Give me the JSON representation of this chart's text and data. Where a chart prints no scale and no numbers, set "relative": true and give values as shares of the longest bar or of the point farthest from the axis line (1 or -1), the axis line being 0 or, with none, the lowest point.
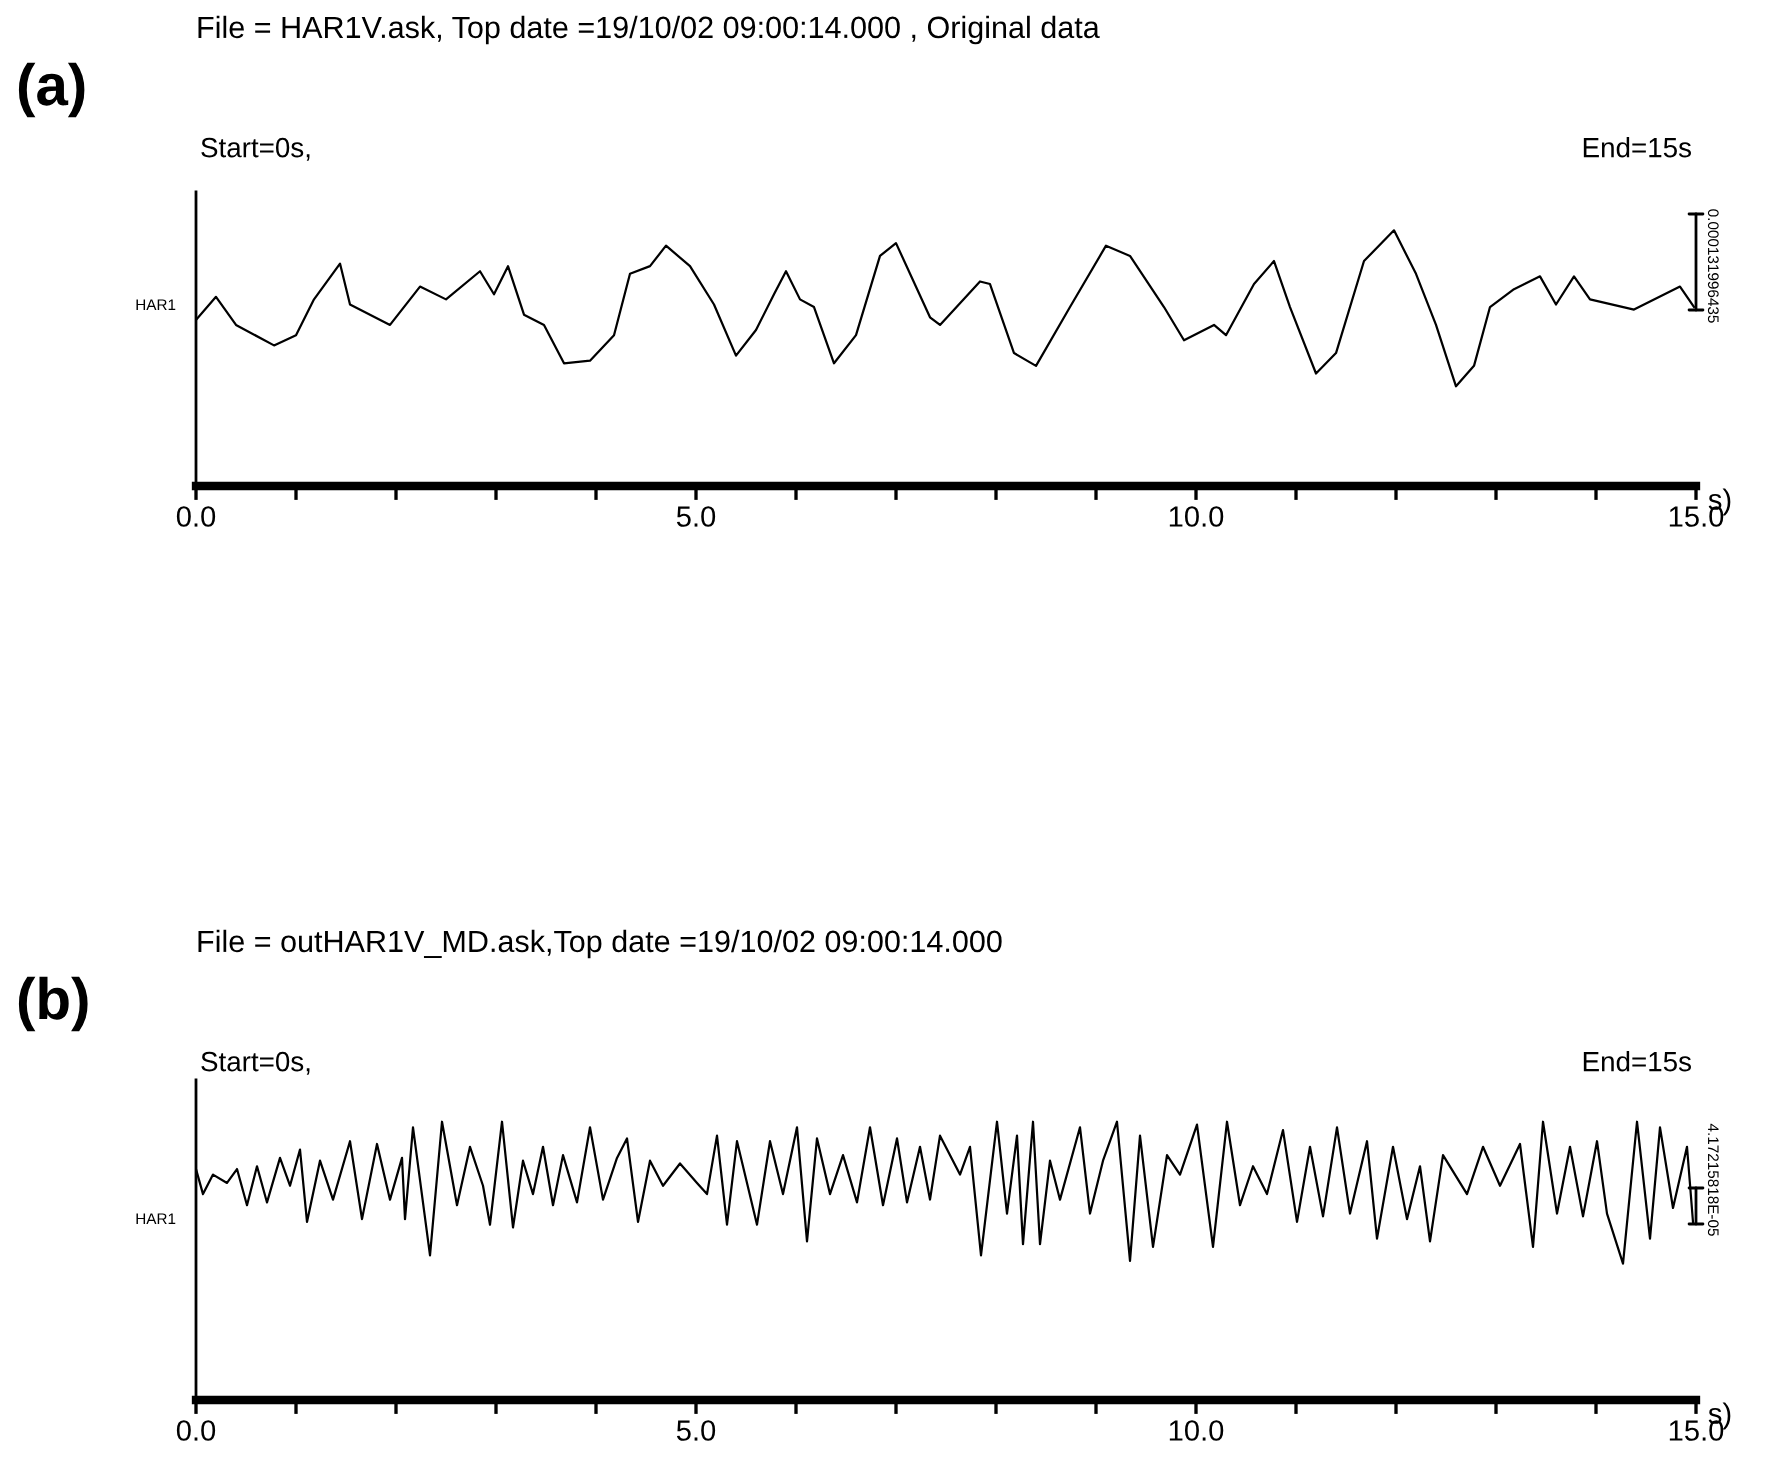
{
  "chart_data": [
    {
      "type": "line",
      "title": "File = HAR1V.ask, Top date =19/10/02 09:00:14.000 , Original data",
      "xlabel": "s)",
      "annotations": [
        "(a)",
        "Start=0s,",
        "End=15s",
        "HAR1",
        "0.000131996435"
      ],
      "relative": true,
      "xlim": [
        0,
        15
      ],
      "xticks": [
        {
          "value": 0,
          "label": "0.0"
        },
        {
          "value": 1,
          "label": null
        },
        {
          "value": 2,
          "label": null
        },
        {
          "value": 3,
          "label": null
        },
        {
          "value": 4,
          "label": null
        },
        {
          "value": 5,
          "label": "5.0"
        },
        {
          "value": 6,
          "label": null
        },
        {
          "value": 7,
          "label": null
        },
        {
          "value": 8,
          "label": null
        },
        {
          "value": 9,
          "label": null
        },
        {
          "value": 10,
          "label": "10.0"
        },
        {
          "value": 11,
          "label": null
        },
        {
          "value": 12,
          "label": null
        },
        {
          "value": 13,
          "label": null
        },
        {
          "value": 14,
          "label": null
        },
        {
          "value": 15,
          "label": "15.0"
        }
      ],
      "x": [
        0.0,
        0.2,
        0.4,
        0.78,
        1.0,
        1.18,
        1.44,
        1.54,
        1.94,
        2.24,
        2.5,
        2.84,
        2.98,
        3.12,
        3.28,
        3.48,
        3.68,
        3.94,
        4.18,
        4.34,
        4.54,
        4.7,
        4.94,
        5.18,
        5.4,
        5.6,
        5.78,
        5.9,
        6.04,
        6.18,
        6.38,
        6.6,
        6.84,
        7.0,
        7.34,
        7.44,
        7.84,
        7.94,
        8.18,
        8.4,
        8.74,
        9.1,
        9.34,
        9.68,
        9.88,
        10.18,
        10.3,
        10.58,
        10.78,
        10.94,
        11.2,
        11.4,
        11.68,
        11.98,
        12.2,
        12.4,
        12.6,
        12.78,
        12.94,
        13.18,
        13.44,
        13.6,
        13.78,
        13.94,
        14.38,
        14.84,
        14.98
      ],
      "series": [
        {
          "color": "#000000",
          "values": [
            0.65,
            0.74,
            0.63,
            0.55,
            0.59,
            0.73,
            0.87,
            0.71,
            0.63,
            0.78,
            0.73,
            0.84,
            0.75,
            0.86,
            0.67,
            0.63,
            0.48,
            0.49,
            0.59,
            0.83,
            0.86,
            0.94,
            0.86,
            0.71,
            0.51,
            0.61,
            0.75,
            0.84,
            0.73,
            0.7,
            0.48,
            0.59,
            0.9,
            0.95,
            0.66,
            0.63,
            0.8,
            0.79,
            0.52,
            0.47,
            0.7,
            0.94,
            0.9,
            0.7,
            0.57,
            0.63,
            0.59,
            0.79,
            0.88,
            0.7,
            0.44,
            0.52,
            0.88,
            1.0,
            0.83,
            0.63,
            0.39,
            0.47,
            0.7,
            0.77,
            0.82,
            0.71,
            0.82,
            0.73,
            0.69,
            0.78,
            0.7
          ]
        }
      ]
    },
    {
      "type": "line",
      "title": "File = outHAR1V_MD.ask,Top date =19/10/02 09:00:14.000",
      "xlabel": "s)",
      "annotations": [
        "(b)",
        "Start=0s,",
        "End=15s",
        "HAR1",
        "4.17215818E-05"
      ],
      "relative": true,
      "xlim": [
        0,
        15
      ],
      "xticks": [
        {
          "value": 0,
          "label": "0.0"
        },
        {
          "value": 1,
          "label": null
        },
        {
          "value": 2,
          "label": null
        },
        {
          "value": 3,
          "label": null
        },
        {
          "value": 4,
          "label": null
        },
        {
          "value": 5,
          "label": "5.0"
        },
        {
          "value": 6,
          "label": null
        },
        {
          "value": 7,
          "label": null
        },
        {
          "value": 8,
          "label": null
        },
        {
          "value": 9,
          "label": null
        },
        {
          "value": 10,
          "label": "10.0"
        },
        {
          "value": 11,
          "label": null
        },
        {
          "value": 12,
          "label": null
        },
        {
          "value": 13,
          "label": null
        },
        {
          "value": 14,
          "label": null
        },
        {
          "value": 15,
          "label": "15.0"
        }
      ],
      "x": [
        0.0,
        0.07,
        0.17,
        0.31,
        0.41,
        0.51,
        0.61,
        0.71,
        0.84,
        0.94,
        1.04,
        1.11,
        1.24,
        1.37,
        1.54,
        1.66,
        1.81,
        1.94,
        2.06,
        2.09,
        2.17,
        2.34,
        2.46,
        2.61,
        2.74,
        2.87,
        2.94,
        3.06,
        3.17,
        3.27,
        3.37,
        3.47,
        3.57,
        3.67,
        3.81,
        3.94,
        4.07,
        4.21,
        4.31,
        4.42,
        4.54,
        4.67,
        4.84,
        5.01,
        5.11,
        5.21,
        5.31,
        5.41,
        5.61,
        5.74,
        5.87,
        6.01,
        6.11,
        6.21,
        6.34,
        6.47,
        6.61,
        6.74,
        6.87,
        7.01,
        7.11,
        7.24,
        7.34,
        7.44,
        7.64,
        7.74,
        7.85,
        8.01,
        8.11,
        8.21,
        8.27,
        8.37,
        8.44,
        8.54,
        8.64,
        8.84,
        8.94,
        9.07,
        9.21,
        9.34,
        9.44,
        9.57,
        9.71,
        9.84,
        10.01,
        10.17,
        10.31,
        10.44,
        10.57,
        10.71,
        10.87,
        11.01,
        11.14,
        11.27,
        11.41,
        11.54,
        11.71,
        11.81,
        11.97,
        12.11,
        12.24,
        12.34,
        12.47,
        12.71,
        12.87,
        13.04,
        13.24,
        13.37,
        13.47,
        13.61,
        13.74,
        13.87,
        14.01,
        14.11,
        14.27,
        14.41,
        14.54,
        14.64,
        14.77,
        14.91,
        14.97
      ],
      "series": [
        {
          "color": "#000000",
          "values": [
            0.83,
            0.74,
            0.81,
            0.78,
            0.83,
            0.7,
            0.84,
            0.71,
            0.87,
            0.77,
            0.9,
            0.64,
            0.86,
            0.72,
            0.93,
            0.65,
            0.92,
            0.72,
            0.87,
            0.65,
            0.98,
            0.52,
            1.0,
            0.7,
            0.91,
            0.77,
            0.63,
            1.0,
            0.62,
            0.86,
            0.74,
            0.91,
            0.7,
            0.88,
            0.71,
            0.98,
            0.72,
            0.87,
            0.94,
            0.64,
            0.86,
            0.77,
            0.85,
            0.78,
            0.74,
            0.95,
            0.63,
            0.93,
            0.63,
            0.93,
            0.74,
            0.98,
            0.57,
            0.94,
            0.74,
            0.88,
            0.71,
            0.98,
            0.7,
            0.94,
            0.71,
            0.91,
            0.72,
            0.95,
            0.81,
            0.91,
            0.52,
            1.0,
            0.67,
            0.95,
            0.56,
            1.0,
            0.56,
            0.86,
            0.72,
            0.98,
            0.67,
            0.86,
            1.0,
            0.5,
            0.95,
            0.55,
            0.88,
            0.81,
            0.99,
            0.55,
            1.0,
            0.7,
            0.84,
            0.74,
            0.97,
            0.64,
            0.91,
            0.66,
            0.98,
            0.67,
            0.93,
            0.58,
            0.91,
            0.65,
            0.84,
            0.57,
            0.88,
            0.74,
            0.91,
            0.77,
            0.92,
            0.55,
            1.0,
            0.67,
            0.91,
            0.66,
            0.93,
            0.67,
            0.49,
            1.0,
            0.58,
            0.98,
            0.69,
            0.91,
            0.64
          ]
        }
      ]
    }
  ]
}
